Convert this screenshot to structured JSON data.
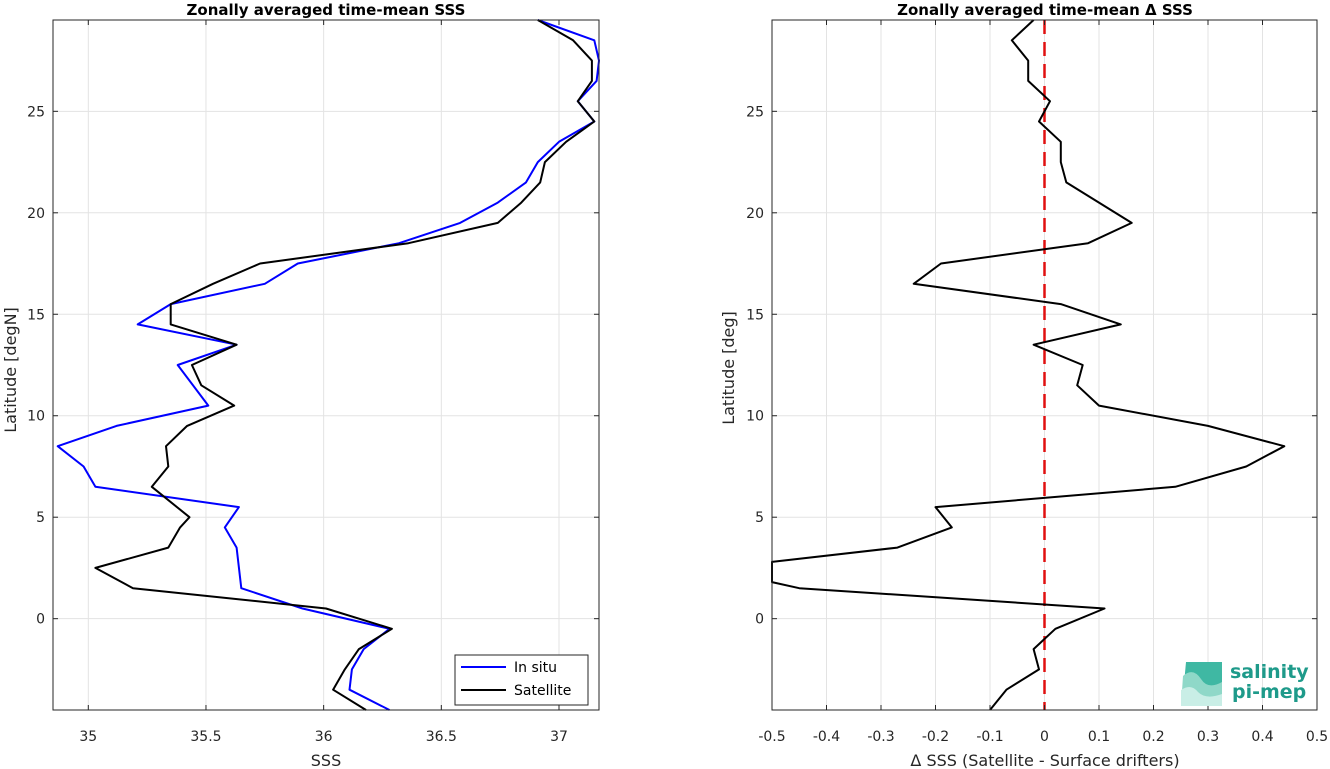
{
  "chart_data": [
    {
      "type": "line",
      "title": "Zonally averaged time-mean SSS",
      "xlabel": "SSS",
      "ylabel": "Latitude [degN]",
      "xlim": [
        34.85,
        37.17
      ],
      "ylim": [
        -4.5,
        29.5
      ],
      "xticks": [
        35,
        35.5,
        36,
        36.5,
        37
      ],
      "xtick_labels": [
        "35",
        "35.5",
        "36",
        "36.5",
        "37"
      ],
      "yticks": [
        0,
        5,
        10,
        15,
        20,
        25
      ],
      "ytick_labels": [
        "0",
        "5",
        "10",
        "15",
        "20",
        "25"
      ],
      "grid": true,
      "legend": "bottom-right",
      "series": [
        {
          "name": "In situ",
          "color": "#0000ff",
          "points": [
            [
              36.28,
              -4.5
            ],
            [
              36.11,
              -3.5
            ],
            [
              36.12,
              -2.5
            ],
            [
              36.17,
              -1.5
            ],
            [
              36.28,
              -0.5
            ],
            [
              35.91,
              0.5
            ],
            [
              35.65,
              1.5
            ],
            [
              35.63,
              3.5
            ],
            [
              35.58,
              4.5
            ],
            [
              35.64,
              5.5
            ],
            [
              35.03,
              6.5
            ],
            [
              34.98,
              7.5
            ],
            [
              34.87,
              8.5
            ],
            [
              35.12,
              9.5
            ],
            [
              35.51,
              10.5
            ],
            [
              35.38,
              12.5
            ],
            [
              35.63,
              13.5
            ],
            [
              35.21,
              14.5
            ],
            [
              35.35,
              15.5
            ],
            [
              35.75,
              16.5
            ],
            [
              35.89,
              17.5
            ],
            [
              36.32,
              18.5
            ],
            [
              36.58,
              19.5
            ],
            [
              36.74,
              20.5
            ],
            [
              36.86,
              21.5
            ],
            [
              36.91,
              22.5
            ],
            [
              37.0,
              23.5
            ],
            [
              37.15,
              24.5
            ],
            [
              37.08,
              25.5
            ],
            [
              37.16,
              26.5
            ],
            [
              37.17,
              27.5
            ],
            [
              37.15,
              28.5
            ],
            [
              36.91,
              29.5
            ]
          ]
        },
        {
          "name": "Satellite",
          "color": "#000000",
          "points": [
            [
              36.18,
              -4.5
            ],
            [
              36.04,
              -3.5
            ],
            [
              36.09,
              -2.5
            ],
            [
              36.15,
              -1.5
            ],
            [
              36.29,
              -0.5
            ],
            [
              36.01,
              0.5
            ],
            [
              35.19,
              1.5
            ],
            [
              35.03,
              2.5
            ],
            [
              35.34,
              3.5
            ],
            [
              35.39,
              4.5
            ],
            [
              35.43,
              5.0
            ],
            [
              35.27,
              6.5
            ],
            [
              35.34,
              7.5
            ],
            [
              35.33,
              8.5
            ],
            [
              35.42,
              9.5
            ],
            [
              35.62,
              10.5
            ],
            [
              35.48,
              11.5
            ],
            [
              35.44,
              12.5
            ],
            [
              35.63,
              13.5
            ],
            [
              35.35,
              14.5
            ],
            [
              35.35,
              15.5
            ],
            [
              35.53,
              16.5
            ],
            [
              35.73,
              17.5
            ],
            [
              36.36,
              18.5
            ],
            [
              36.74,
              19.5
            ],
            [
              36.84,
              20.5
            ],
            [
              36.92,
              21.5
            ],
            [
              36.94,
              22.5
            ],
            [
              37.03,
              23.5
            ],
            [
              37.15,
              24.5
            ],
            [
              37.08,
              25.5
            ],
            [
              37.14,
              26.5
            ],
            [
              37.14,
              27.5
            ],
            [
              37.06,
              28.5
            ],
            [
              36.91,
              29.5
            ]
          ]
        }
      ]
    },
    {
      "type": "line",
      "title": "Zonally averaged time-mean Δ SSS",
      "xlabel": "Δ SSS (Satellite - Surface drifters)",
      "ylabel": "Latitude [deg]",
      "xlim": [
        -0.5,
        0.5
      ],
      "ylim": [
        -4.5,
        29.5
      ],
      "xticks": [
        -0.5,
        -0.4,
        -0.3,
        -0.2,
        -0.1,
        0,
        0.1,
        0.2,
        0.3,
        0.4,
        0.5
      ],
      "xtick_labels": [
        "-0.5",
        "-0.4",
        "-0.3",
        "-0.2",
        "-0.1",
        "0",
        "0.1",
        "0.2",
        "0.3",
        "0.4",
        "0.5"
      ],
      "yticks": [
        0,
        5,
        10,
        15,
        20,
        25
      ],
      "ytick_labels": [
        "0",
        "5",
        "10",
        "15",
        "20",
        "25"
      ],
      "grid": true,
      "reference_line": {
        "x": 0,
        "color": "#e01010",
        "style": "dashed"
      },
      "series": [
        {
          "color": "#000000",
          "points": [
            [
              -0.1,
              -4.5
            ],
            [
              -0.07,
              -3.5
            ],
            [
              -0.01,
              -2.5
            ],
            [
              -0.02,
              -1.5
            ],
            [
              0.02,
              -0.5
            ],
            [
              0.11,
              0.5
            ],
            [
              -0.45,
              1.5
            ],
            [
              -0.5,
              1.8
            ],
            [
              -0.5,
              2.8
            ],
            [
              -0.27,
              3.5
            ],
            [
              -0.17,
              4.5
            ],
            [
              -0.2,
              5.5
            ],
            [
              0.24,
              6.5
            ],
            [
              0.37,
              7.5
            ],
            [
              0.44,
              8.5
            ],
            [
              0.3,
              9.5
            ],
            [
              0.1,
              10.5
            ],
            [
              0.06,
              11.5
            ],
            [
              0.07,
              12.5
            ],
            [
              -0.02,
              13.5
            ],
            [
              0.14,
              14.5
            ],
            [
              0.03,
              15.5
            ],
            [
              -0.24,
              16.5
            ],
            [
              -0.19,
              17.5
            ],
            [
              0.08,
              18.5
            ],
            [
              0.16,
              19.5
            ],
            [
              0.1,
              20.5
            ],
            [
              0.04,
              21.5
            ],
            [
              0.03,
              22.5
            ],
            [
              0.03,
              23.5
            ],
            [
              -0.01,
              24.5
            ],
            [
              0.01,
              25.5
            ],
            [
              -0.03,
              26.5
            ],
            [
              -0.03,
              27.5
            ],
            [
              -0.06,
              28.5
            ],
            [
              -0.02,
              29.5
            ]
          ]
        }
      ]
    }
  ],
  "legend": {
    "items": [
      {
        "label": "In situ",
        "color": "#0000ff"
      },
      {
        "label": "Satellite",
        "color": "#000000"
      }
    ]
  },
  "logo": {
    "line1": "salinity",
    "line2": "pi-mep"
  }
}
